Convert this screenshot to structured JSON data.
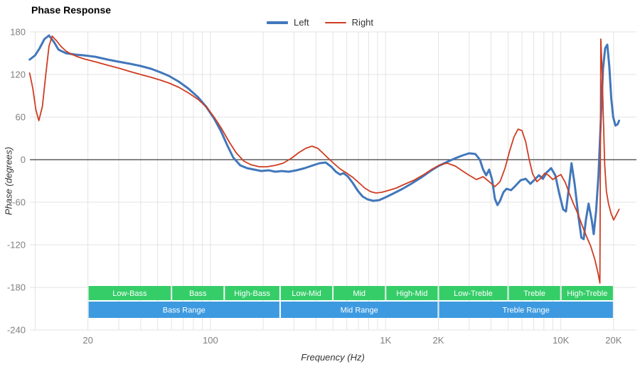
{
  "title": "Phase Response",
  "legend": {
    "left_label": "Left",
    "right_label": "Right"
  },
  "colors": {
    "left": "#4277bb",
    "right": "#cf3c21",
    "band_sub": "#35cd68",
    "band_main": "#3d9ae0",
    "grid": "#e3e3e3",
    "zero_line": "#3c3c3c",
    "tick_text": "#7f7f7f",
    "band_text": "#ffffff"
  },
  "chart_data": {
    "type": "line",
    "title": "Phase Response",
    "xlabel": "Frequency (Hz)",
    "ylabel": "Phase (degrees)",
    "x_scale": "log",
    "grid": true,
    "legend_position": "top-center",
    "xlim": [
      9.33,
      27000
    ],
    "ylim": [
      -240,
      180
    ],
    "y_ticks": [
      180,
      120,
      60,
      0,
      -60,
      -120,
      -180,
      -240
    ],
    "x_ticks": [
      {
        "value": 20,
        "label": "20"
      },
      {
        "value": 100,
        "label": "100"
      },
      {
        "value": 1000,
        "label": "1K"
      },
      {
        "value": 2000,
        "label": "2K"
      },
      {
        "value": 10000,
        "label": "10K"
      },
      {
        "value": 20000,
        "label": "20K"
      }
    ],
    "series": [
      {
        "name": "Left",
        "color": "#4277bb",
        "width": 3,
        "points": [
          [
            9.3,
            141
          ],
          [
            10,
            147
          ],
          [
            10.6,
            157
          ],
          [
            11.3,
            170
          ],
          [
            12,
            175
          ],
          [
            12.8,
            166
          ],
          [
            13.6,
            155
          ],
          [
            15,
            150
          ],
          [
            17,
            148
          ],
          [
            19,
            147
          ],
          [
            22,
            145
          ],
          [
            26,
            141
          ],
          [
            30,
            138
          ],
          [
            35,
            135
          ],
          [
            40,
            132
          ],
          [
            46,
            128
          ],
          [
            52,
            123
          ],
          [
            58,
            118
          ],
          [
            66,
            110
          ],
          [
            75,
            100
          ],
          [
            85,
            88
          ],
          [
            95,
            74
          ],
          [
            105,
            58
          ],
          [
            115,
            40
          ],
          [
            125,
            20
          ],
          [
            135,
            3
          ],
          [
            148,
            -8
          ],
          [
            162,
            -12
          ],
          [
            178,
            -14
          ],
          [
            195,
            -16
          ],
          [
            215,
            -15
          ],
          [
            235,
            -17
          ],
          [
            255,
            -16
          ],
          [
            280,
            -17
          ],
          [
            310,
            -15
          ],
          [
            345,
            -12
          ],
          [
            385,
            -8
          ],
          [
            420,
            -5
          ],
          [
            455,
            -4
          ],
          [
            490,
            -10
          ],
          [
            520,
            -17
          ],
          [
            550,
            -21
          ],
          [
            575,
            -19
          ],
          [
            610,
            -24
          ],
          [
            650,
            -33
          ],
          [
            695,
            -44
          ],
          [
            740,
            -52
          ],
          [
            790,
            -56
          ],
          [
            850,
            -58
          ],
          [
            920,
            -57
          ],
          [
            1000,
            -53
          ],
          [
            1100,
            -48
          ],
          [
            1250,
            -41
          ],
          [
            1400,
            -34
          ],
          [
            1600,
            -25
          ],
          [
            1800,
            -16
          ],
          [
            2000,
            -9
          ],
          [
            2250,
            -3
          ],
          [
            2500,
            2
          ],
          [
            2750,
            6
          ],
          [
            3000,
            9
          ],
          [
            3250,
            8
          ],
          [
            3450,
            0
          ],
          [
            3600,
            -14
          ],
          [
            3750,
            -22
          ],
          [
            3900,
            -14
          ],
          [
            4050,
            -28
          ],
          [
            4200,
            -55
          ],
          [
            4350,
            -64
          ],
          [
            4500,
            -58
          ],
          [
            4700,
            -46
          ],
          [
            4900,
            -41
          ],
          [
            5200,
            -43
          ],
          [
            5500,
            -37
          ],
          [
            5900,
            -29
          ],
          [
            6300,
            -27
          ],
          [
            6700,
            -34
          ],
          [
            7100,
            -28
          ],
          [
            7500,
            -22
          ],
          [
            7900,
            -27
          ],
          [
            8300,
            -18
          ],
          [
            8800,
            -12
          ],
          [
            9300,
            -22
          ],
          [
            9800,
            -48
          ],
          [
            10300,
            -70
          ],
          [
            10700,
            -73
          ],
          [
            11100,
            -40
          ],
          [
            11500,
            -5
          ],
          [
            12000,
            -35
          ],
          [
            12600,
            -80
          ],
          [
            13100,
            -110
          ],
          [
            13500,
            -112
          ],
          [
            13900,
            -85
          ],
          [
            14400,
            -62
          ],
          [
            15000,
            -85
          ],
          [
            15400,
            -105
          ],
          [
            15900,
            -72
          ],
          [
            16400,
            -22
          ],
          [
            16900,
            55
          ],
          [
            17400,
            128
          ],
          [
            17900,
            157
          ],
          [
            18400,
            162
          ],
          [
            18900,
            132
          ],
          [
            19400,
            86
          ],
          [
            19900,
            60
          ],
          [
            20500,
            48
          ],
          [
            21100,
            50
          ],
          [
            21500,
            55
          ]
        ]
      },
      {
        "name": "Right",
        "color": "#cf3c21",
        "width": 1.8,
        "points": [
          [
            9.3,
            122
          ],
          [
            9.7,
            100
          ],
          [
            10.1,
            70
          ],
          [
            10.5,
            55
          ],
          [
            11,
            75
          ],
          [
            11.5,
            120
          ],
          [
            12,
            160
          ],
          [
            12.5,
            174
          ],
          [
            13.2,
            168
          ],
          [
            14,
            160
          ],
          [
            15,
            153
          ],
          [
            16,
            149
          ],
          [
            17.5,
            145
          ],
          [
            19,
            142
          ],
          [
            22,
            138
          ],
          [
            26,
            133
          ],
          [
            30,
            129
          ],
          [
            35,
            124
          ],
          [
            40,
            120
          ],
          [
            46,
            116
          ],
          [
            52,
            112
          ],
          [
            58,
            108
          ],
          [
            66,
            102
          ],
          [
            75,
            94
          ],
          [
            85,
            85
          ],
          [
            95,
            74
          ],
          [
            105,
            60
          ],
          [
            115,
            45
          ],
          [
            128,
            25
          ],
          [
            140,
            10
          ],
          [
            155,
            -2
          ],
          [
            170,
            -7
          ],
          [
            190,
            -10
          ],
          [
            210,
            -10
          ],
          [
            235,
            -8
          ],
          [
            260,
            -5
          ],
          [
            290,
            2
          ],
          [
            320,
            10
          ],
          [
            350,
            16
          ],
          [
            380,
            19
          ],
          [
            410,
            16
          ],
          [
            440,
            9
          ],
          [
            475,
            1
          ],
          [
            510,
            -6
          ],
          [
            550,
            -13
          ],
          [
            600,
            -19
          ],
          [
            650,
            -25
          ],
          [
            700,
            -32
          ],
          [
            760,
            -40
          ],
          [
            820,
            -45
          ],
          [
            880,
            -47
          ],
          [
            950,
            -46
          ],
          [
            1050,
            -43
          ],
          [
            1150,
            -40
          ],
          [
            1300,
            -34
          ],
          [
            1450,
            -29
          ],
          [
            1650,
            -21
          ],
          [
            1850,
            -13
          ],
          [
            2050,
            -7
          ],
          [
            2250,
            -5
          ],
          [
            2500,
            -9
          ],
          [
            2750,
            -16
          ],
          [
            3000,
            -22
          ],
          [
            3300,
            -28
          ],
          [
            3600,
            -24
          ],
          [
            3900,
            -31
          ],
          [
            4200,
            -38
          ],
          [
            4500,
            -31
          ],
          [
            4800,
            -12
          ],
          [
            5100,
            12
          ],
          [
            5400,
            32
          ],
          [
            5700,
            43
          ],
          [
            6000,
            41
          ],
          [
            6300,
            25
          ],
          [
            6600,
            0
          ],
          [
            6900,
            -20
          ],
          [
            7300,
            -31
          ],
          [
            7700,
            -26
          ],
          [
            8100,
            -19
          ],
          [
            8500,
            -22
          ],
          [
            9000,
            -28
          ],
          [
            9500,
            -24
          ],
          [
            10000,
            -21
          ],
          [
            10600,
            -32
          ],
          [
            11200,
            -48
          ],
          [
            11800,
            -62
          ],
          [
            12500,
            -76
          ],
          [
            13200,
            -92
          ],
          [
            14000,
            -108
          ],
          [
            14800,
            -122
          ],
          [
            15600,
            -140
          ],
          [
            16300,
            -160
          ],
          [
            16700,
            -174
          ],
          [
            16900,
            170
          ],
          [
            17200,
            125
          ],
          [
            17500,
            55
          ],
          [
            17800,
            -8
          ],
          [
            18200,
            -45
          ],
          [
            18700,
            -62
          ],
          [
            19300,
            -75
          ],
          [
            20000,
            -85
          ],
          [
            20700,
            -78
          ],
          [
            21500,
            -70
          ]
        ]
      }
    ],
    "bands": {
      "sub": [
        {
          "label": "Low-Bass",
          "from": 20,
          "to": 60
        },
        {
          "label": "Bass",
          "from": 60,
          "to": 120
        },
        {
          "label": "High-Bass",
          "from": 120,
          "to": 250
        },
        {
          "label": "Low-Mid",
          "from": 250,
          "to": 500
        },
        {
          "label": "Mid",
          "from": 500,
          "to": 1000
        },
        {
          "label": "High-Mid",
          "from": 1000,
          "to": 2000
        },
        {
          "label": "Low-Treble",
          "from": 2000,
          "to": 5000
        },
        {
          "label": "Treble",
          "from": 5000,
          "to": 10000
        },
        {
          "label": "High-Treble",
          "from": 10000,
          "to": 20000
        }
      ],
      "main": [
        {
          "label": "Bass Range",
          "from": 20,
          "to": 250
        },
        {
          "label": "Mid Range",
          "from": 250,
          "to": 2000
        },
        {
          "label": "Treble Range",
          "from": 2000,
          "to": 20000
        }
      ]
    }
  }
}
